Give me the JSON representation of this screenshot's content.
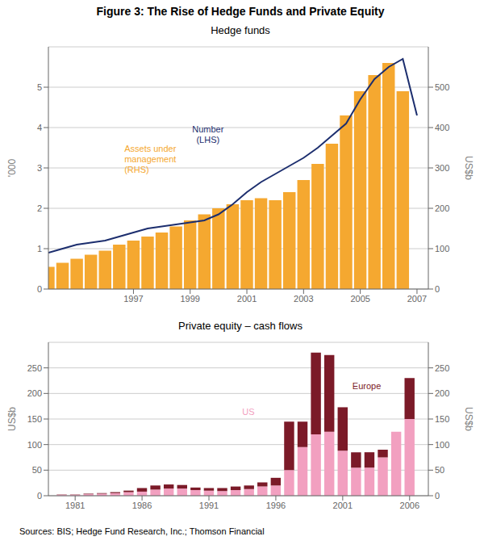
{
  "title": "Figure 3: The Rise of Hedge Funds and Private Equity",
  "source": "Sources:  BIS; Hedge Fund Research, Inc.; Thomson Financial",
  "chart_data": [
    {
      "type": "bar",
      "title": "Hedge funds",
      "xlim": [
        1994.0,
        2007.4
      ],
      "xticks": [
        1997,
        1999,
        2001,
        2003,
        2005,
        2007
      ],
      "ylim": [
        0,
        6
      ],
      "yticks": [
        0,
        1,
        2,
        3,
        4,
        5
      ],
      "y2lim": [
        0,
        600
      ],
      "y2ticks": [
        0,
        100,
        200,
        300,
        400,
        500
      ],
      "ylabel": "'000",
      "y2label": "US$b",
      "grid": true,
      "series": [
        {
          "type": "bar",
          "axis": "y2",
          "color": "#F5A830",
          "x": [
            1994,
            1994.5,
            1995,
            1995.5,
            1996,
            1996.5,
            1997,
            1997.5,
            1998,
            1998.5,
            1999,
            1999.5,
            2000,
            2000.5,
            2001,
            2001.5,
            2002,
            2002.5,
            2003,
            2003.5,
            2004,
            2004.5,
            2005,
            2005.5,
            2006,
            2006.5
          ],
          "values": [
            55,
            65,
            75,
            85,
            95,
            110,
            120,
            130,
            140,
            155,
            170,
            185,
            200,
            210,
            220,
            225,
            220,
            240,
            270,
            310,
            360,
            430,
            490,
            530,
            560,
            490
          ]
        },
        {
          "type": "line",
          "color": "#1C2E6E",
          "x": [
            1994,
            1994.5,
            1995,
            1995.5,
            1996,
            1996.5,
            1997,
            1997.5,
            1998,
            1998.5,
            1999,
            1999.5,
            2000,
            2000.5,
            2001,
            2001.5,
            2002,
            2002.5,
            2003,
            2003.5,
            2004,
            2004.5,
            2005,
            2005.5,
            2006,
            2006.5,
            2007
          ],
          "values": [
            0.9,
            1.0,
            1.1,
            1.15,
            1.2,
            1.3,
            1.4,
            1.5,
            1.55,
            1.6,
            1.65,
            1.7,
            1.85,
            2.1,
            2.4,
            2.65,
            2.85,
            3.05,
            3.25,
            3.5,
            3.8,
            4.1,
            4.7,
            5.2,
            5.5,
            5.7,
            4.3
          ]
        }
      ],
      "annotations": [
        {
          "text": "Number\n(LHS)",
          "color": "#1C2E6E"
        },
        {
          "text": "Assets under\nmanagement\n(RHS)",
          "color": "#F5A830"
        }
      ]
    },
    {
      "type": "bar",
      "title": "Private equity – cash flows",
      "x": [
        1980,
        1981,
        1982,
        1983,
        1984,
        1985,
        1986,
        1987,
        1988,
        1989,
        1990,
        1991,
        1992,
        1993,
        1994,
        1995,
        1996,
        1997,
        1998,
        1999,
        2000,
        2001,
        2002,
        2003,
        2004,
        2005,
        2006
      ],
      "xlim": [
        1979.0,
        2007.4
      ],
      "xticks": [
        1981,
        1986,
        1991,
        1996,
        2001,
        2006
      ],
      "ylim": [
        0,
        300
      ],
      "yticks": [
        0,
        50,
        100,
        150,
        200,
        250
      ],
      "y2lim": [
        0,
        300
      ],
      "y2ticks": [
        0,
        50,
        100,
        150,
        200,
        250
      ],
      "ylabel": "US$b",
      "y2label": "US$b",
      "grid": true,
      "stacked": true,
      "series": [
        {
          "name": "US",
          "color": "#F2A0C0",
          "values": [
            2,
            2,
            3,
            4,
            5,
            7,
            8,
            12,
            14,
            14,
            11,
            10,
            9,
            11,
            13,
            18,
            20,
            50,
            95,
            120,
            125,
            88,
            55,
            55,
            75,
            125,
            150
          ]
        },
        {
          "name": "Europe",
          "color": "#7B1A28",
          "values": [
            0.5,
            0.5,
            1,
            1,
            2,
            3,
            7,
            8,
            8,
            7,
            5,
            5,
            6,
            7,
            7,
            8,
            15,
            95,
            50,
            160,
            150,
            85,
            30,
            30,
            15,
            0,
            80
          ]
        }
      ]
    }
  ]
}
